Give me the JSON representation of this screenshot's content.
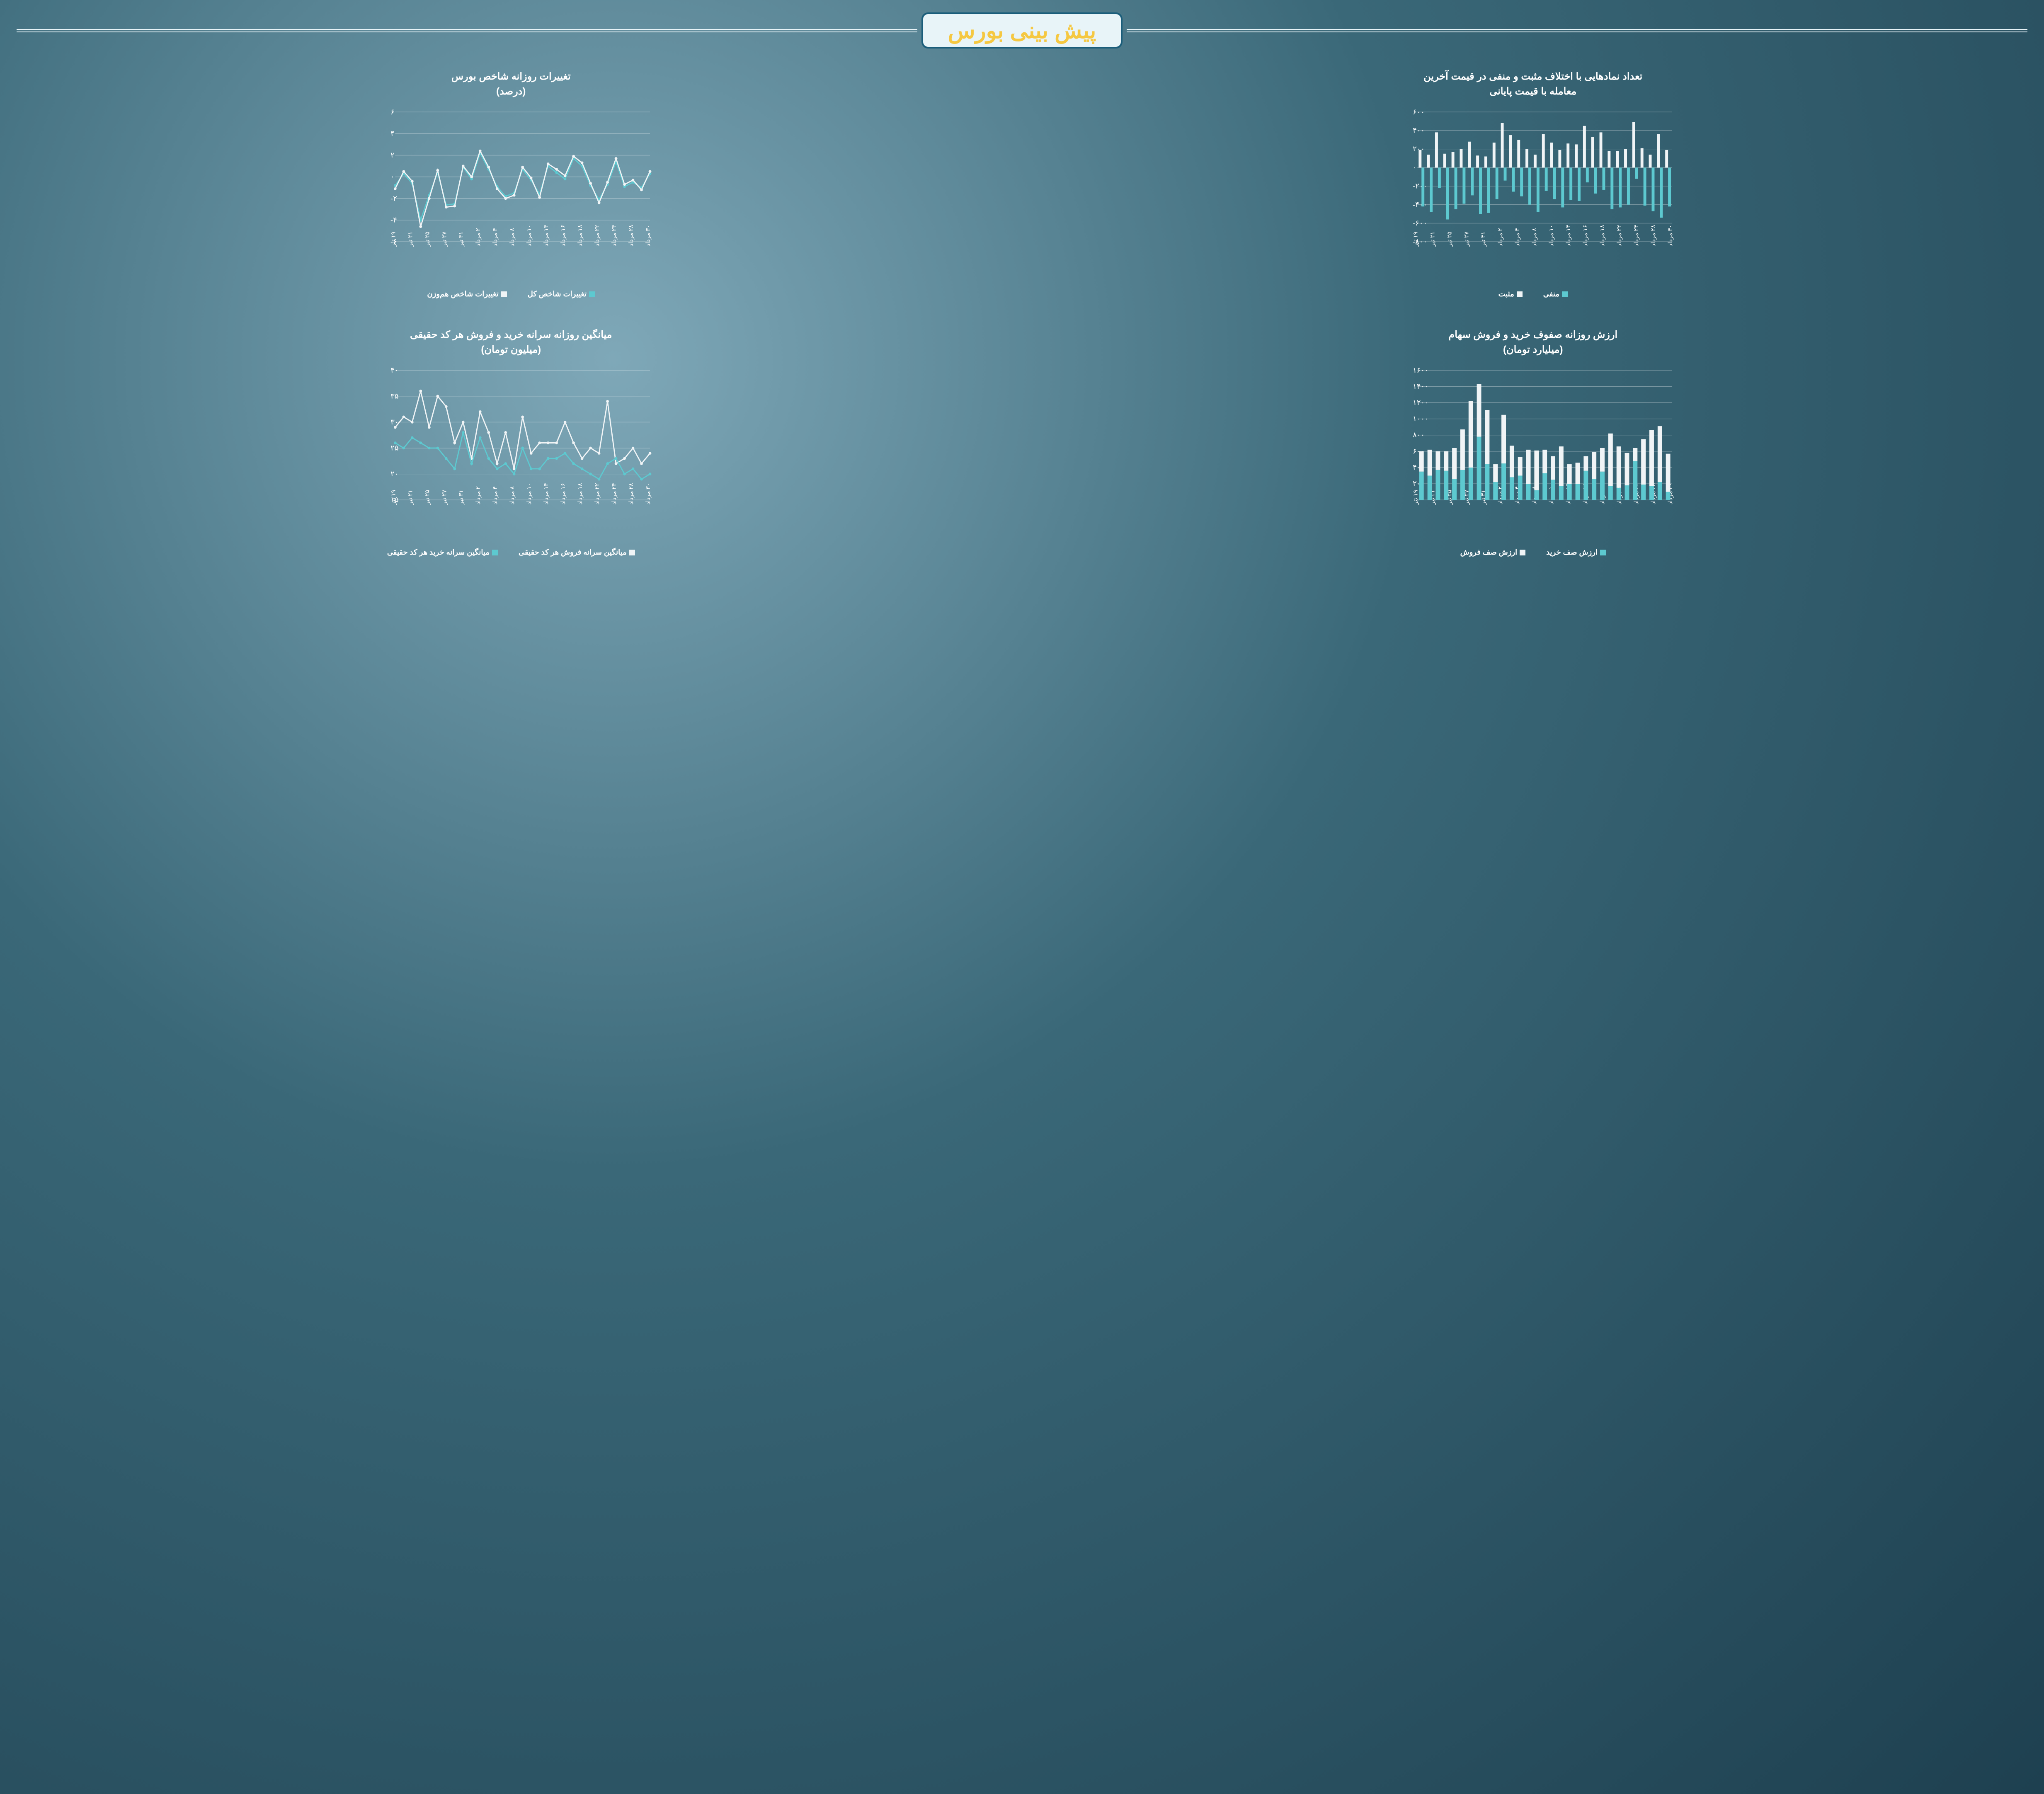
{
  "page_title": "پیش بینی بورس",
  "colors": {
    "teal": "#5dc9d0",
    "white": "#f0f4f6",
    "title_yellow": "#f5c842",
    "title_box_bg": "#e8f4f8",
    "title_border": "#1a5d7a",
    "grid": "#ffffff",
    "text": "#ffffff"
  },
  "x_categories": [
    "۱۹ تیر",
    "۲۱ تیر",
    "۲۵ تیر",
    "۲۷ تیر",
    "۱ مرداد",
    "۲ مرداد",
    "۴ مرداد",
    "۸ مرداد",
    "۱۰ مرداد",
    "۱۵ مرداد",
    "۱۷ مرداد",
    "۲۱ مرداد",
    "۲۳ مرداد",
    "۲۵ مرداد",
    "۲۹ مرداد",
    "۳۰ مرداد"
  ],
  "x_categories_dense": [
    "۱۹ تیر",
    "۲۰ تیر",
    "۲۱ تیر",
    "۲۴ تیر",
    "۲۵ تیر",
    "۲۶ تیر",
    "۲۷ تیر",
    "۲۸ تیر",
    "۳۱ تیر",
    "۱ مرداد",
    "۲ مرداد",
    "۳ مرداد",
    "۴ مرداد",
    "۷ مرداد",
    "۸ مرداد",
    "۹ مرداد",
    "۱۰ مرداد",
    "۱۱ مرداد",
    "۱۴ مرداد",
    "۱۵ مرداد",
    "۱۶ مرداد",
    "۱۷ مرداد",
    "۱۸ مرداد",
    "۲۱ مرداد",
    "۲۲ مرداد",
    "۲۳ مرداد",
    "۲۴ مرداد",
    "۲۵ مرداد",
    "۲۸ مرداد",
    "۲۹ مرداد",
    "۳۰ مرداد"
  ],
  "chart1": {
    "title_line1": "تغییرات روزانه شاخص بورس",
    "title_line2": "(درصد)",
    "type": "line",
    "y_min": -6,
    "y_max": 6,
    "y_step": 2,
    "y_ticks": [
      "۶-",
      "۴-",
      "۲-",
      "۰",
      "۲",
      "۴",
      "۶"
    ],
    "series": [
      {
        "name": "تغییرات شاخص کل",
        "color": "#5dc9d0",
        "values": [
          -0.8,
          0.3,
          -0.6,
          -4.0,
          -1.7,
          0.4,
          -2.6,
          -2.5,
          0.9,
          -0.2,
          2.2,
          0.7,
          -0.9,
          -1.8,
          -1.5,
          0.7,
          -0.3,
          -1.6,
          1.0,
          0.4,
          -0.2,
          1.7,
          1.0,
          -0.8,
          -2.1,
          -0.7,
          1.4,
          -0.9,
          -0.5,
          -1.0,
          0.3
        ]
      },
      {
        "name": "تغییرات شاخص هم‌وزن",
        "color": "#f0f4f6",
        "values": [
          -1.1,
          0.5,
          -0.4,
          -4.6,
          -2.0,
          0.6,
          -2.8,
          -2.7,
          1.0,
          0.0,
          2.4,
          0.9,
          -1.1,
          -2.0,
          -1.7,
          0.9,
          -0.1,
          -1.9,
          1.2,
          0.7,
          0.1,
          1.9,
          1.3,
          -0.6,
          -2.4,
          -0.5,
          1.7,
          -0.7,
          -0.3,
          -1.2,
          0.5
        ]
      }
    ],
    "legend": [
      {
        "label": "تغییرات شاخص کل",
        "color": "#5dc9d0"
      },
      {
        "label": "تغییرات شاخص هم‌وزن",
        "color": "#f0f4f6"
      }
    ]
  },
  "chart2": {
    "title_line1": "تعداد نمادهایی با اختلاف مثبت و منفی در قیمت آخرین",
    "title_line2": "معامله با قیمت پایانی",
    "type": "grouped-bar-mirror",
    "y_min": -800,
    "y_max": 600,
    "y_step": 200,
    "y_ticks": [
      "۸۰۰-",
      "۶۰۰-",
      "۴۰۰-",
      "۲۰۰-",
      "۰",
      "۲۰۰",
      "۴۰۰",
      "۶۰۰"
    ],
    "positive": {
      "name": "مثبت",
      "color": "#f0f4f6",
      "values": [
        190,
        140,
        380,
        150,
        170,
        200,
        280,
        130,
        120,
        270,
        480,
        350,
        300,
        200,
        140,
        360,
        270,
        190,
        260,
        250,
        450,
        330,
        380,
        180,
        180,
        200,
        490,
        210,
        140,
        360,
        190
      ]
    },
    "negative": {
      "name": "منفی",
      "color": "#5dc9d0",
      "values": [
        -420,
        -480,
        -220,
        -560,
        -450,
        -390,
        -300,
        -500,
        -490,
        -340,
        -140,
        -260,
        -310,
        -400,
        -480,
        -250,
        -340,
        -430,
        -350,
        -360,
        -160,
        -280,
        -240,
        -450,
        -430,
        -400,
        -120,
        -410,
        -470,
        -540,
        -420
      ]
    },
    "legend": [
      {
        "label": "منفی",
        "color": "#5dc9d0"
      },
      {
        "label": "مثبت",
        "color": "#f0f4f6"
      }
    ]
  },
  "chart3": {
    "title_line1": "میانگین روزانه سرانه خرید و فروش هر کد حقیقی",
    "title_line2": "(میلیون تومان)",
    "type": "line",
    "y_min": 15,
    "y_max": 40,
    "y_step": 5,
    "y_ticks": [
      "۱۵",
      "۲۰",
      "۲۵",
      "۳۰",
      "۳۵",
      "۴۰"
    ],
    "series": [
      {
        "name": "میانگین سرانه فروش هر کد حقیقی",
        "color": "#f0f4f6",
        "values": [
          29,
          31,
          30,
          36,
          29,
          35,
          33,
          26,
          30,
          23,
          32,
          28,
          22,
          28,
          21,
          31,
          24,
          26,
          26,
          26,
          30,
          26,
          23,
          25,
          24,
          34,
          22,
          23,
          25,
          22,
          24
        ]
      },
      {
        "name": "میانگین سرانه خرید هر کد حقیقی",
        "color": "#5dc9d0",
        "values": [
          26,
          25,
          27,
          26,
          25,
          25,
          23,
          21,
          28,
          22,
          27,
          23,
          21,
          22,
          20,
          25,
          21,
          21,
          23,
          23,
          24,
          22,
          21,
          20,
          19,
          22,
          23,
          20,
          21,
          19,
          20
        ]
      }
    ],
    "legend": [
      {
        "label": "میانگین سرانه فروش هر کد حقیقی",
        "color": "#f0f4f6"
      },
      {
        "label": "میانگین سرانه خرید هر کد حقیقی",
        "color": "#5dc9d0"
      }
    ]
  },
  "chart4": {
    "title_line1": "ارزش روزانه صفوف خرید و فروش سهام",
    "title_line2": "(میلیارد تومان)",
    "type": "stacked-bar",
    "y_min": 0,
    "y_max": 1600,
    "y_step": 200,
    "y_ticks": [
      "۰",
      "۲۰۰",
      "۴۰۰",
      "۶۰۰",
      "۸۰۰",
      "۱۰۰۰",
      "۱۲۰۰",
      "۱۴۰۰",
      "۱۶۰۰"
    ],
    "buy": {
      "name": "ارزش صف خرید",
      "color": "#5dc9d0",
      "values": [
        350,
        300,
        370,
        360,
        260,
        370,
        400,
        780,
        440,
        220,
        450,
        280,
        300,
        200,
        120,
        330,
        250,
        170,
        200,
        200,
        360,
        260,
        350,
        170,
        150,
        180,
        480,
        190,
        170,
        220,
        100
      ]
    },
    "sell": {
      "name": "ارزش صف فروش",
      "color": "#f0f4f6",
      "values": [
        250,
        320,
        230,
        240,
        380,
        500,
        820,
        650,
        670,
        220,
        600,
        390,
        230,
        420,
        490,
        290,
        290,
        490,
        240,
        260,
        180,
        330,
        290,
        650,
        510,
        400,
        160,
        560,
        690,
        690,
        470
      ]
    },
    "legend": [
      {
        "label": "ارزش صف خرید",
        "color": "#5dc9d0"
      },
      {
        "label": "ارزش صف فروش",
        "color": "#f0f4f6"
      }
    ]
  }
}
